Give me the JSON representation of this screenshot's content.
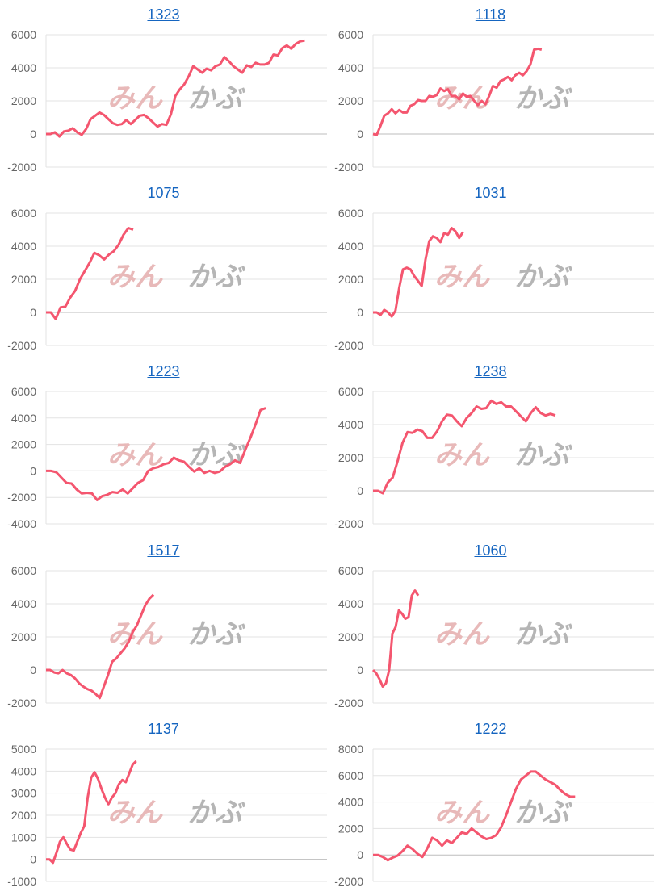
{
  "watermark": {
    "logo_text_red": "みん",
    "logo_text_gray": "かぶ",
    "red": "#e8b9b9",
    "gray": "#b5b5b5"
  },
  "colors": {
    "line": "#f4566f",
    "grid": "#e3e3e3",
    "zero_line": "#bdbdbd",
    "title_link": "#1565c0",
    "tick_text": "#666666"
  },
  "chart_data": [
    {
      "type": "line",
      "title": "1323",
      "ylim": [
        -2000,
        6000
      ],
      "yticks": [
        "6000",
        "4000",
        "2000",
        "0",
        "-2000"
      ],
      "xlim": [
        0,
        63
      ],
      "grid": true,
      "values": [
        0,
        0,
        100,
        -150,
        150,
        200,
        350,
        100,
        -50,
        300,
        900,
        1100,
        1300,
        1150,
        900,
        650,
        550,
        600,
        850,
        600,
        850,
        1100,
        1150,
        950,
        700,
        450,
        600,
        550,
        1200,
        2300,
        2700,
        3000,
        3500,
        4100,
        3900,
        3700,
        3950,
        3850,
        4100,
        4200,
        4650,
        4400,
        4100,
        3900,
        3700,
        4150,
        4050,
        4300,
        4200,
        4200,
        4300,
        4800,
        4750,
        5200,
        5350,
        5150,
        5450,
        5600,
        5650
      ]
    },
    {
      "type": "line",
      "title": "1118",
      "ylim": [
        -2000,
        6000
      ],
      "yticks": [
        "6000",
        "4000",
        "2000",
        "0",
        "-2000"
      ],
      "xlim": [
        0,
        75
      ],
      "grid": true,
      "values": [
        0,
        -50,
        500,
        1100,
        1250,
        1500,
        1250,
        1450,
        1300,
        1300,
        1700,
        1800,
        2050,
        2000,
        2000,
        2300,
        2250,
        2350,
        2750,
        2600,
        2700,
        2300,
        2300,
        2100,
        2450,
        2250,
        2300,
        2000,
        1750,
        2000,
        1800,
        2300,
        2900,
        2800,
        3200,
        3300,
        3450,
        3250,
        3550,
        3700,
        3550,
        3800,
        4200,
        5100,
        5150,
        5100
      ]
    },
    {
      "type": "line",
      "title": "1075",
      "ylim": [
        -2000,
        6000
      ],
      "yticks": [
        "6000",
        "4000",
        "2000",
        "0",
        "-2000"
      ],
      "xlim": [
        0,
        58
      ],
      "grid": true,
      "values": [
        0,
        0,
        -400,
        300,
        350,
        900,
        1300,
        2000,
        2500,
        3000,
        3600,
        3450,
        3200,
        3500,
        3700,
        4100,
        4700,
        5100,
        5000
      ]
    },
    {
      "type": "line",
      "title": "1031",
      "ylim": [
        -2000,
        6000
      ],
      "yticks": [
        "6000",
        "4000",
        "2000",
        "0",
        "-2000"
      ],
      "xlim": [
        0,
        75
      ],
      "grid": true,
      "values": [
        0,
        0,
        -150,
        150,
        0,
        -250,
        100,
        1500,
        2600,
        2700,
        2600,
        2200,
        1900,
        1600,
        3200,
        4300,
        4600,
        4500,
        4250,
        4800,
        4700,
        5100,
        4900,
        4500,
        4850
      ]
    },
    {
      "type": "line",
      "title": "1223",
      "ylim": [
        -4000,
        6000
      ],
      "yticks": [
        "6000",
        "4000",
        "2000",
        "0",
        "-2000",
        "-4000"
      ],
      "xlim": [
        0,
        55
      ],
      "grid": true,
      "values": [
        0,
        0,
        -100,
        -500,
        -900,
        -950,
        -1400,
        -1700,
        -1650,
        -1700,
        -2200,
        -1900,
        -1800,
        -1600,
        -1650,
        -1400,
        -1700,
        -1300,
        -900,
        -700,
        0,
        200,
        300,
        500,
        600,
        1000,
        800,
        700,
        300,
        -50,
        200,
        -150,
        0,
        -150,
        -50,
        300,
        500,
        800,
        600,
        1600,
        2500,
        3500,
        4600,
        4750
      ]
    },
    {
      "type": "line",
      "title": "1238",
      "ylim": [
        -2000,
        6000
      ],
      "yticks": [
        "6000",
        "4000",
        "2000",
        "0",
        "-2000"
      ],
      "xlim": [
        0,
        57
      ],
      "grid": true,
      "values": [
        0,
        0,
        -150,
        500,
        800,
        1800,
        2900,
        3550,
        3500,
        3700,
        3600,
        3200,
        3200,
        3600,
        4200,
        4600,
        4550,
        4200,
        3900,
        4400,
        4700,
        5100,
        4950,
        5000,
        5450,
        5250,
        5350,
        5100,
        5100,
        4800,
        4500,
        4200,
        4700,
        5050,
        4700,
        4550,
        4650,
        4550
      ]
    },
    {
      "type": "line",
      "title": "1517",
      "ylim": [
        -2000,
        6000
      ],
      "yticks": [
        "6000",
        "4000",
        "2000",
        "0",
        "-2000"
      ],
      "xlim": [
        0,
        68
      ],
      "grid": true,
      "values": [
        0,
        0,
        -150,
        -200,
        0,
        -200,
        -300,
        -500,
        -800,
        -1000,
        -1150,
        -1250,
        -1450,
        -1700,
        -1000,
        -300,
        500,
        700,
        1000,
        1300,
        1700,
        2300,
        2700,
        3300,
        3900,
        4300,
        4550
      ]
    },
    {
      "type": "line",
      "title": "1060",
      "ylim": [
        -2000,
        6000
      ],
      "yticks": [
        "6000",
        "4000",
        "2000",
        "0",
        "-2000"
      ],
      "xlim": [
        0,
        87
      ],
      "grid": true,
      "values": [
        0,
        -200,
        -550,
        -1000,
        -800,
        0,
        2200,
        2600,
        3600,
        3400,
        3100,
        3200,
        4500,
        4800,
        4500
      ]
    },
    {
      "type": "line",
      "title": "1137",
      "ylim": [
        -1000,
        5000
      ],
      "yticks": [
        "5000",
        "4000",
        "3000",
        "2000",
        "1000",
        "0",
        "-1000"
      ],
      "xlim": [
        0,
        81
      ],
      "grid": true,
      "values": [
        0,
        0,
        -150,
        300,
        800,
        1000,
        700,
        450,
        400,
        800,
        1200,
        1500,
        2800,
        3700,
        3950,
        3650,
        3200,
        2800,
        2500,
        2800,
        3000,
        3400,
        3600,
        3500,
        3900,
        4300,
        4450
      ]
    },
    {
      "type": "line",
      "title": "1222",
      "ylim": [
        -2000,
        8000
      ],
      "yticks": [
        "8000",
        "6000",
        "4000",
        "2000",
        "0",
        "-2000"
      ],
      "xlim": [
        0,
        57
      ],
      "grid": true,
      "values": [
        0,
        0,
        -150,
        -400,
        -200,
        -50,
        300,
        700,
        450,
        100,
        -150,
        500,
        1300,
        1100,
        700,
        1100,
        900,
        1300,
        1700,
        1600,
        2000,
        1700,
        1400,
        1200,
        1300,
        1500,
        2100,
        3000,
        4000,
        5000,
        5700,
        6000,
        6300,
        6300,
        6000,
        5700,
        5500,
        5300,
        4900,
        4600,
        4400,
        4400
      ]
    }
  ]
}
